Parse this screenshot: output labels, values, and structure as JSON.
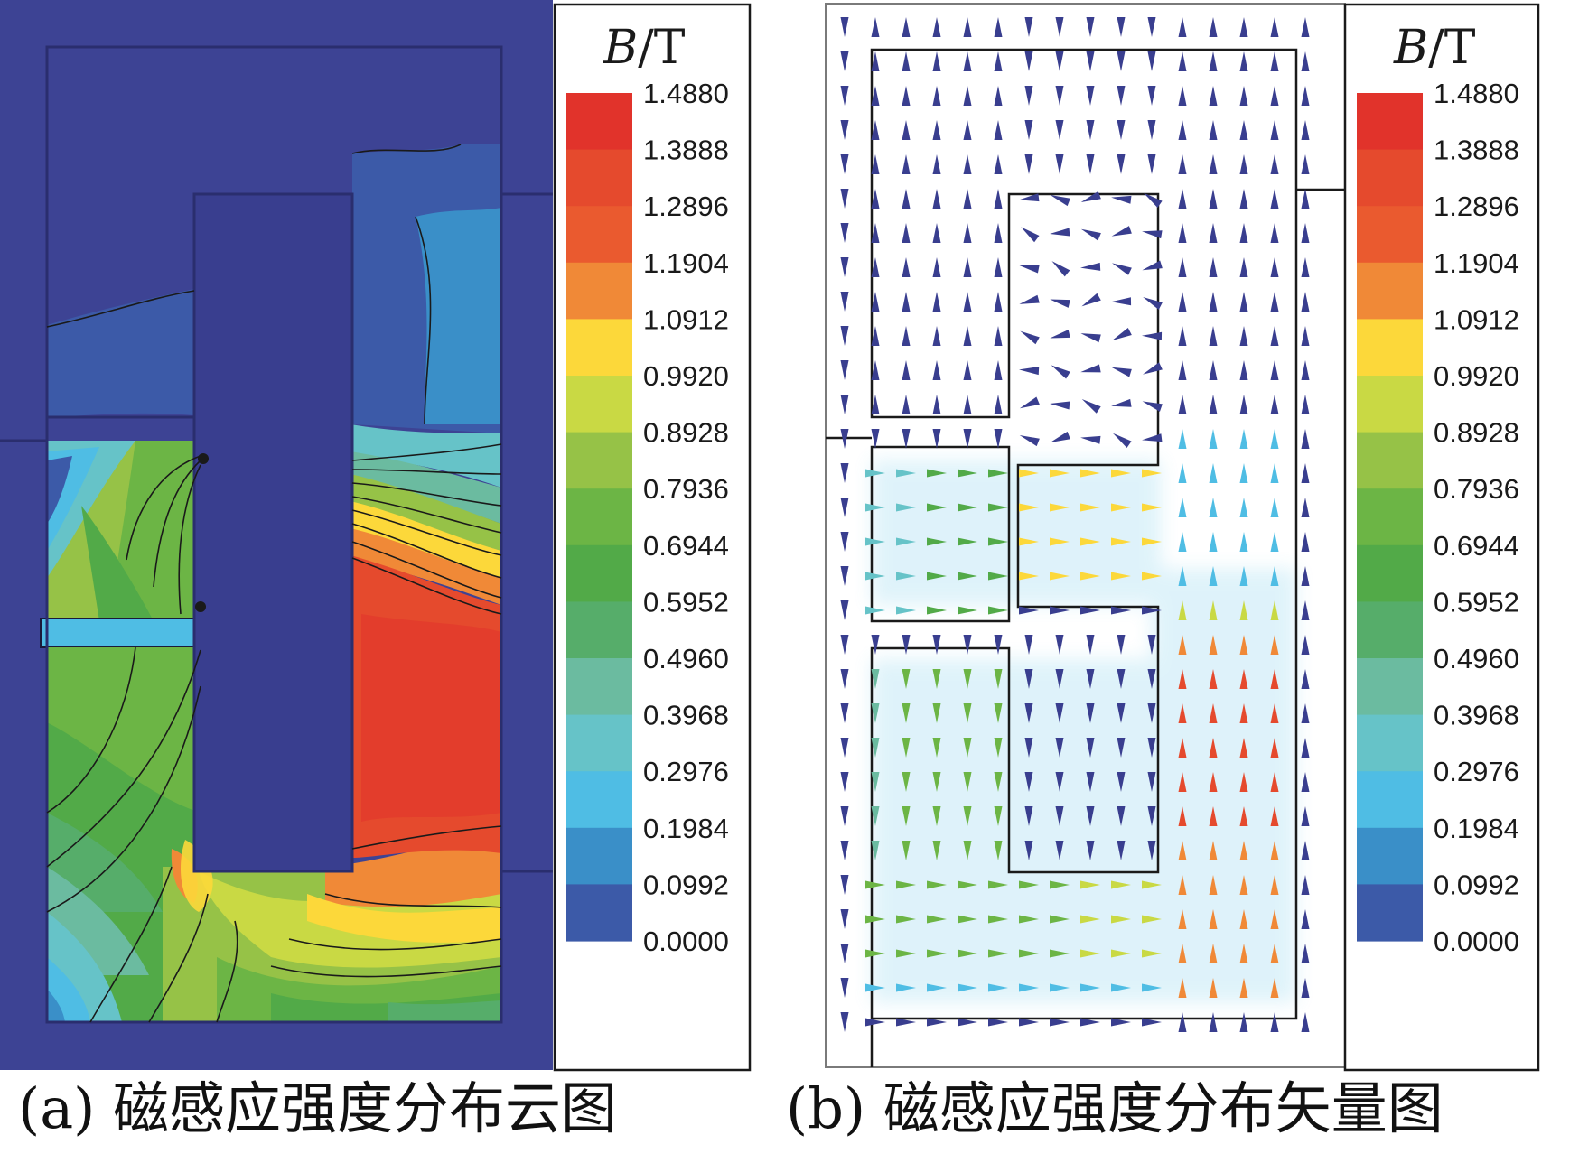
{
  "colorbar": {
    "title_italic": "B",
    "title_rest": "/T",
    "levels": [
      {
        "value": "1.4880",
        "color": "#e1332b"
      },
      {
        "value": "1.3888",
        "color": "#e54a2d"
      },
      {
        "value": "1.2896",
        "color": "#ea5a2f"
      },
      {
        "value": "1.1904",
        "color": "#f08937"
      },
      {
        "value": "1.0912",
        "color": "#fcd83a"
      },
      {
        "value": "0.9920",
        "color": "#c9d944"
      },
      {
        "value": "0.8928",
        "color": "#96c247"
      },
      {
        "value": "0.7936",
        "color": "#6cb545"
      },
      {
        "value": "0.6944",
        "color": "#52aa48"
      },
      {
        "value": "0.5952",
        "color": "#56ad6a"
      },
      {
        "value": "0.4960",
        "color": "#6bbba0"
      },
      {
        "value": "0.3968",
        "color": "#66c3c8"
      },
      {
        "value": "0.2976",
        "color": "#4fbde4"
      },
      {
        "value": "0.1984",
        "color": "#3a8fc8"
      },
      {
        "value": "0.0992",
        "color": "#3c5aa8"
      },
      {
        "value": "0.0000",
        "color": "#393e8f"
      }
    ]
  },
  "captions": {
    "a": "(a)  磁感应强度分布云图",
    "b": "(b)  磁感应强度分布矢量图"
  },
  "colors": {
    "background_field": "#3d4394",
    "core_outline": "#2a2e6e"
  }
}
